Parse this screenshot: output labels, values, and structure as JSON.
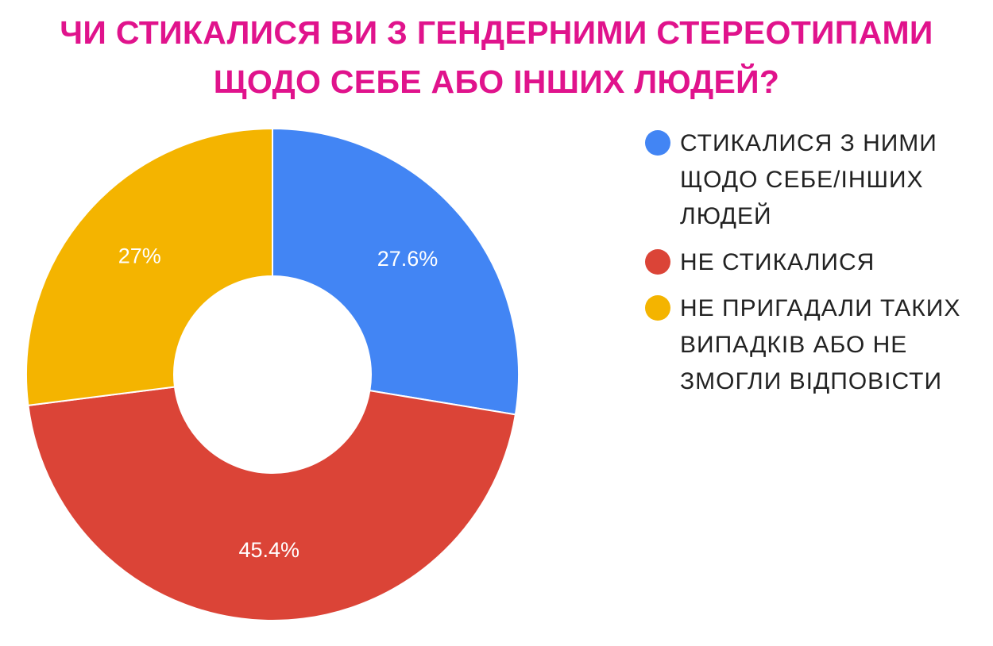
{
  "title_lines": [
    "ЧИ СТИКАЛИСЯ ВИ З ГЕНДЕРНИМИ СТЕРЕОТИПАМИ",
    "ЩОДО СЕБЕ АБО ІНШИХ ЛЮДЕЙ?"
  ],
  "colors": {
    "title": "#e0138c",
    "blue": "#4285f4",
    "red": "#db4437",
    "yellow": "#f4b400"
  },
  "chart_data": {
    "type": "pie",
    "variant": "donut",
    "title": "ЧИ СТИКАЛИСЯ ВИ З ГЕНДЕРНИМИ СТЕРЕОТИПАМИ ЩОДО СЕБЕ АБО ІНШИХ ЛЮДЕЙ?",
    "legend_position": "right",
    "slices": [
      {
        "label_lines": [
          "СТИКАЛИСЯ З НИМИ",
          "ЩОДО СЕБЕ/ІНШИХ",
          "ЛЮДЕЙ"
        ],
        "value": 27.6,
        "value_label": "27.6%",
        "color": "#4285f4"
      },
      {
        "label_lines": [
          "НЕ СТИКАЛИСЯ"
        ],
        "value": 45.4,
        "value_label": "45.4%",
        "color": "#db4437"
      },
      {
        "label_lines": [
          "НЕ ПРИГАДАЛИ ТАКИХ",
          "ВИПАДКІВ АБО НЕ",
          "ЗМОГЛИ ВІДПОВІСТИ"
        ],
        "value": 27,
        "value_label": "27%",
        "color": "#f4b400"
      }
    ]
  }
}
